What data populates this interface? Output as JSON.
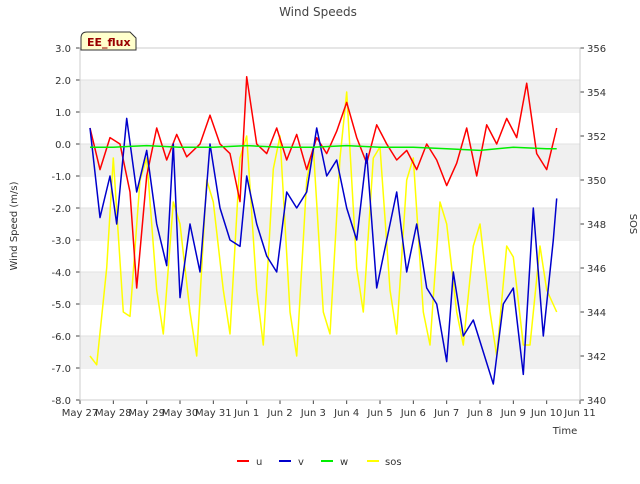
{
  "chart_data": {
    "type": "line",
    "title": "Wind Speeds",
    "xlabel": "Time",
    "ylabel": "Wind Speed (m/s)",
    "y2label": "SOS",
    "ylim": [
      -8.0,
      3.0
    ],
    "y2lim": [
      340,
      356
    ],
    "xlim": [
      0,
      15
    ],
    "yticks": [
      "-8.0",
      "-7.0",
      "-6.0",
      "-5.0",
      "-4.0",
      "-3.0",
      "-2.0",
      "-1.0",
      "0.0",
      "1.0",
      "2.0",
      "3.0"
    ],
    "y2ticks": [
      "340",
      "342",
      "344",
      "346",
      "348",
      "350",
      "352",
      "354",
      "356"
    ],
    "xticks": [
      "May 27",
      "May 28",
      "May 29",
      "May 30",
      "May 31",
      "Jun 1",
      "Jun 2",
      "Jun 3",
      "Jun 4",
      "Jun 5",
      "Jun 6",
      "Jun 7",
      "Jun 8",
      "Jun 9",
      "Jun 10",
      "Jun 11"
    ],
    "badge": "EE_flux",
    "grid": "horizontal bands",
    "legend_position": "bottom-center",
    "series": [
      {
        "name": "u",
        "axis": "left",
        "color": "#ff0000",
        "x": [
          0.3,
          0.6,
          0.9,
          1.2,
          1.5,
          1.7,
          2.0,
          2.3,
          2.6,
          2.9,
          3.2,
          3.6,
          3.9,
          4.2,
          4.5,
          4.8,
          5.0,
          5.3,
          5.6,
          5.9,
          6.2,
          6.5,
          6.8,
          7.1,
          7.4,
          7.7,
          8.0,
          8.3,
          8.6,
          8.9,
          9.2,
          9.5,
          9.8,
          10.1,
          10.4,
          10.7,
          11.0,
          11.3,
          11.6,
          11.9,
          12.2,
          12.5,
          12.8,
          13.1,
          13.4,
          13.7,
          14.0,
          14.3
        ],
        "values": [
          0.5,
          -0.8,
          0.2,
          0.0,
          -1.5,
          -4.5,
          -1.0,
          0.5,
          -0.5,
          0.3,
          -0.4,
          0.0,
          0.9,
          0.0,
          -0.3,
          -1.8,
          2.1,
          0.0,
          -0.3,
          0.5,
          -0.5,
          0.3,
          -0.8,
          0.2,
          -0.3,
          0.4,
          1.3,
          0.2,
          -0.6,
          0.6,
          0.0,
          -0.5,
          -0.2,
          -0.8,
          0.0,
          -0.5,
          -1.3,
          -0.6,
          0.5,
          -1.0,
          0.6,
          0.0,
          0.8,
          0.2,
          1.9,
          -0.3,
          -0.8,
          0.5
        ]
      },
      {
        "name": "v",
        "axis": "left",
        "color": "#0000cc",
        "x": [
          0.3,
          0.6,
          0.9,
          1.1,
          1.4,
          1.7,
          2.0,
          2.3,
          2.6,
          2.8,
          3.0,
          3.3,
          3.6,
          3.9,
          4.2,
          4.5,
          4.8,
          5.0,
          5.3,
          5.6,
          5.9,
          6.2,
          6.5,
          6.8,
          7.1,
          7.4,
          7.7,
          8.0,
          8.3,
          8.6,
          8.9,
          9.2,
          9.5,
          9.8,
          10.1,
          10.4,
          10.7,
          11.0,
          11.2,
          11.5,
          11.8,
          12.1,
          12.4,
          12.7,
          13.0,
          13.3,
          13.6,
          13.9,
          14.2,
          14.3
        ],
        "values": [
          0.5,
          -2.3,
          -1.0,
          -2.5,
          0.8,
          -1.5,
          -0.2,
          -2.5,
          -3.8,
          0.0,
          -4.8,
          -2.5,
          -4.0,
          0.0,
          -2.0,
          -3.0,
          -3.2,
          -1.0,
          -2.5,
          -3.5,
          -4.0,
          -1.5,
          -2.0,
          -1.5,
          0.5,
          -1.0,
          -0.5,
          -2.0,
          -3.0,
          -0.3,
          -4.5,
          -3.0,
          -1.5,
          -4.0,
          -2.5,
          -4.5,
          -5.0,
          -6.8,
          -4.0,
          -6.0,
          -5.5,
          -6.5,
          -7.5,
          -5.0,
          -4.5,
          -7.2,
          -2.0,
          -6.0,
          -3.0,
          -1.7
        ]
      },
      {
        "name": "w",
        "axis": "left",
        "color": "#00ee00",
        "x": [
          0.3,
          1.0,
          2.0,
          3.0,
          4.0,
          5.0,
          6.0,
          7.0,
          8.0,
          9.0,
          10.0,
          11.0,
          12.0,
          13.0,
          14.0,
          14.3
        ],
        "values": [
          -0.1,
          -0.1,
          -0.05,
          -0.1,
          -0.1,
          -0.05,
          -0.1,
          -0.1,
          -0.05,
          -0.1,
          -0.1,
          -0.15,
          -0.2,
          -0.1,
          -0.15,
          -0.15
        ]
      },
      {
        "name": "sos",
        "axis": "right",
        "color": "#ffff00",
        "x": [
          0.3,
          0.5,
          0.8,
          1.0,
          1.3,
          1.5,
          1.8,
          2.0,
          2.3,
          2.5,
          2.8,
          3.0,
          3.3,
          3.5,
          3.8,
          4.0,
          4.3,
          4.5,
          4.8,
          5.0,
          5.3,
          5.5,
          5.8,
          6.0,
          6.3,
          6.5,
          6.8,
          7.0,
          7.3,
          7.5,
          7.8,
          8.0,
          8.3,
          8.5,
          8.8,
          9.0,
          9.3,
          9.5,
          9.8,
          10.0,
          10.3,
          10.5,
          10.8,
          11.0,
          11.3,
          11.5,
          11.8,
          12.0,
          12.3,
          12.5,
          12.8,
          13.0,
          13.3,
          13.5,
          13.8,
          14.0,
          14.3
        ],
        "values": [
          342.0,
          341.6,
          346.0,
          351.0,
          344.0,
          343.8,
          350.0,
          351.0,
          345.0,
          343.0,
          349.0,
          348.0,
          344.0,
          342.0,
          350.0,
          349.0,
          345.0,
          343.0,
          351.0,
          352.0,
          345.0,
          342.5,
          350.5,
          352.0,
          344.0,
          342.0,
          350.0,
          351.5,
          344.0,
          343.0,
          351.0,
          354.0,
          346.0,
          344.0,
          351.0,
          351.5,
          345.0,
          343.0,
          350.0,
          351.0,
          344.0,
          342.5,
          349.0,
          348.0,
          344.0,
          342.5,
          347.0,
          348.0,
          344.0,
          342.0,
          347.0,
          346.5,
          342.5,
          342.5,
          347.0,
          345.0,
          344.0
        ]
      }
    ]
  }
}
